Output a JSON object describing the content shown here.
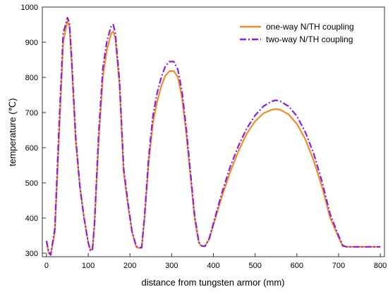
{
  "chart_data": {
    "type": "line",
    "xlabel": "distance from tungsten armor (mm)",
    "ylabel": "temperature (℃)",
    "xlim": [
      -10,
      810
    ],
    "ylim": [
      290,
      1000
    ],
    "xticks": [
      0,
      100,
      200,
      300,
      400,
      500,
      600,
      700,
      800
    ],
    "yticks": [
      300,
      400,
      500,
      600,
      700,
      800,
      900,
      1000
    ],
    "grid": false,
    "legend_position": "top-right",
    "series": [
      {
        "name": "one-way N/TH coupling",
        "color": "#f28c28",
        "line_style": "solid",
        "x": [
          0,
          5,
          10,
          20,
          30,
          40,
          50,
          55,
          60,
          70,
          80,
          90,
          100,
          105,
          110,
          115,
          125,
          135,
          145,
          155,
          160,
          165,
          175,
          185,
          195,
          205,
          215,
          220,
          228,
          235,
          245,
          255,
          265,
          275,
          285,
          295,
          305,
          315,
          325,
          335,
          345,
          355,
          365,
          370,
          375,
          380,
          390,
          400,
          420,
          440,
          460,
          480,
          500,
          520,
          540,
          550,
          560,
          580,
          600,
          620,
          640,
          660,
          680,
          700,
          710,
          720,
          740,
          760,
          780,
          800
        ],
        "values": [
          335,
          300,
          295,
          360,
          630,
          900,
          960,
          945,
          850,
          620,
          490,
          400,
          330,
          310,
          310,
          380,
          620,
          800,
          880,
          925,
          930,
          910,
          780,
          530,
          440,
          360,
          318,
          315,
          315,
          400,
          560,
          670,
          730,
          775,
          805,
          818,
          818,
          800,
          740,
          640,
          520,
          400,
          330,
          322,
          320,
          320,
          340,
          380,
          460,
          530,
          590,
          640,
          675,
          698,
          708,
          710,
          708,
          695,
          668,
          625,
          565,
          490,
          400,
          345,
          320,
          318,
          318,
          318,
          318,
          318
        ]
      },
      {
        "name": "two-way N/TH coupling",
        "color": "#8a1fe0",
        "line_style": "dashdot",
        "x": [
          0,
          5,
          10,
          20,
          30,
          40,
          50,
          55,
          60,
          70,
          80,
          90,
          100,
          105,
          110,
          115,
          125,
          135,
          145,
          155,
          160,
          165,
          175,
          185,
          195,
          205,
          215,
          220,
          228,
          235,
          245,
          255,
          265,
          275,
          285,
          295,
          305,
          315,
          325,
          335,
          345,
          355,
          365,
          370,
          375,
          380,
          390,
          400,
          420,
          440,
          460,
          480,
          500,
          520,
          540,
          550,
          560,
          580,
          600,
          620,
          640,
          660,
          680,
          700,
          710,
          720,
          740,
          760,
          780,
          800
        ],
        "values": [
          335,
          305,
          295,
          370,
          660,
          925,
          970,
          955,
          860,
          630,
          490,
          400,
          330,
          308,
          308,
          385,
          640,
          825,
          905,
          945,
          950,
          925,
          790,
          540,
          445,
          362,
          320,
          316,
          316,
          405,
          575,
          690,
          755,
          800,
          832,
          845,
          845,
          822,
          758,
          655,
          530,
          408,
          332,
          322,
          320,
          320,
          342,
          385,
          470,
          545,
          605,
          655,
          692,
          718,
          732,
          735,
          732,
          718,
          690,
          645,
          585,
          505,
          410,
          350,
          322,
          318,
          318,
          318,
          318,
          318
        ]
      }
    ]
  }
}
